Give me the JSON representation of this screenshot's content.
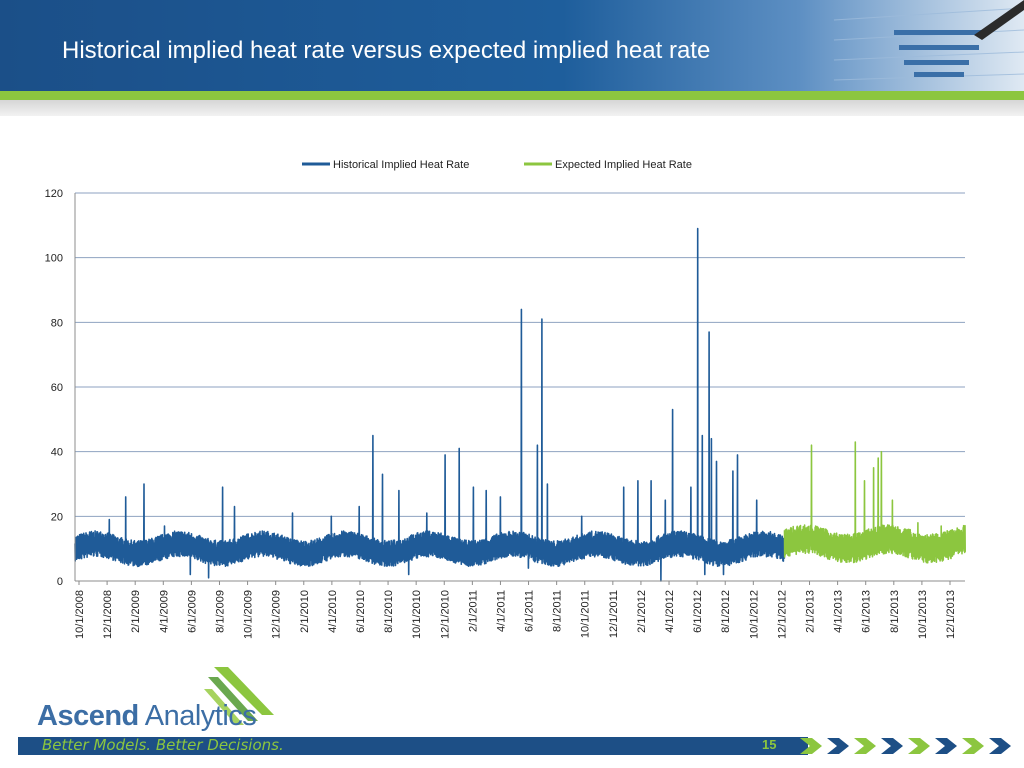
{
  "slide": {
    "title": "Historical implied heat rate versus expected implied heat rate",
    "page_number": "15"
  },
  "branding": {
    "logo_bold": "Ascend",
    "logo_light": " Analytics",
    "tagline": "Better Models. Better Decisions."
  },
  "colors": {
    "historical": "#1f5b98",
    "expected": "#8cc63f",
    "header": "#1e5e9c",
    "accent_green": "#8cc63f"
  },
  "chart_data": {
    "type": "line",
    "title": "",
    "xlabel": "",
    "ylabel": "",
    "ylim": [
      0,
      120
    ],
    "yticks": [
      0,
      20,
      40,
      60,
      80,
      100,
      120
    ],
    "grid": true,
    "legend_position": "top",
    "x_tick_labels": [
      "10/1/2008",
      "12/1/2008",
      "2/1/2009",
      "4/1/2009",
      "6/1/2009",
      "8/1/2009",
      "10/1/2009",
      "12/1/2009",
      "2/1/2010",
      "4/1/2010",
      "6/1/2010",
      "8/1/2010",
      "10/1/2010",
      "12/1/2010",
      "2/1/2011",
      "4/1/2011",
      "6/1/2011",
      "8/1/2011",
      "10/1/2011",
      "12/1/2011",
      "2/1/2012",
      "4/1/2012",
      "6/1/2012",
      "8/1/2012",
      "10/1/2012",
      "12/1/2012",
      "2/1/2013",
      "4/1/2013",
      "6/1/2013",
      "8/1/2013",
      "10/1/2013",
      "12/1/2013"
    ],
    "x_range": [
      "2008-10-01",
      "2014-01-31"
    ],
    "series": [
      {
        "name": "Historical Implied Heat Rate",
        "color": "#1f5b98",
        "range": [
          "2008-10-01",
          "2012-12-31"
        ],
        "typical_band": [
          6,
          14
        ],
        "notable_points": [
          {
            "date": "2008-12-15",
            "value": 19
          },
          {
            "date": "2009-01-20",
            "value": 26
          },
          {
            "date": "2009-03-01",
            "value": 30
          },
          {
            "date": "2009-04-15",
            "value": 17
          },
          {
            "date": "2009-06-10",
            "value": 2
          },
          {
            "date": "2009-07-20",
            "value": 1
          },
          {
            "date": "2009-08-20",
            "value": 29
          },
          {
            "date": "2009-09-15",
            "value": 23
          },
          {
            "date": "2010-01-20",
            "value": 21
          },
          {
            "date": "2010-04-15",
            "value": 20
          },
          {
            "date": "2010-06-15",
            "value": 23
          },
          {
            "date": "2010-07-15",
            "value": 45
          },
          {
            "date": "2010-08-05",
            "value": 33
          },
          {
            "date": "2010-09-10",
            "value": 28
          },
          {
            "date": "2010-10-01",
            "value": 2
          },
          {
            "date": "2010-11-10",
            "value": 21
          },
          {
            "date": "2010-12-20",
            "value": 39
          },
          {
            "date": "2011-01-20",
            "value": 41
          },
          {
            "date": "2011-02-20",
            "value": 29
          },
          {
            "date": "2011-03-20",
            "value": 28
          },
          {
            "date": "2011-04-20",
            "value": 26
          },
          {
            "date": "2011-06-05",
            "value": 84
          },
          {
            "date": "2011-06-20",
            "value": 4
          },
          {
            "date": "2011-07-10",
            "value": 42
          },
          {
            "date": "2011-07-20",
            "value": 81
          },
          {
            "date": "2011-08-01",
            "value": 30
          },
          {
            "date": "2011-10-15",
            "value": 20
          },
          {
            "date": "2012-01-15",
            "value": 29
          },
          {
            "date": "2012-02-15",
            "value": 31
          },
          {
            "date": "2012-03-15",
            "value": 31
          },
          {
            "date": "2012-04-05",
            "value": 0
          },
          {
            "date": "2012-04-15",
            "value": 25
          },
          {
            "date": "2012-05-01",
            "value": 53
          },
          {
            "date": "2012-06-10",
            "value": 29
          },
          {
            "date": "2012-06-25",
            "value": 109
          },
          {
            "date": "2012-07-05",
            "value": 45
          },
          {
            "date": "2012-07-10",
            "value": 2
          },
          {
            "date": "2012-07-20",
            "value": 77
          },
          {
            "date": "2012-07-25",
            "value": 44
          },
          {
            "date": "2012-08-05",
            "value": 37
          },
          {
            "date": "2012-08-20",
            "value": 2
          },
          {
            "date": "2012-09-10",
            "value": 34
          },
          {
            "date": "2012-09-20",
            "value": 39
          },
          {
            "date": "2012-11-01",
            "value": 25
          }
        ]
      },
      {
        "name": "Expected Implied Heat Rate",
        "color": "#8cc63f",
        "range": [
          "2013-01-01",
          "2014-01-31"
        ],
        "typical_band": [
          7,
          16
        ],
        "notable_points": [
          {
            "date": "2013-03-01",
            "value": 42
          },
          {
            "date": "2013-06-05",
            "value": 43
          },
          {
            "date": "2013-06-25",
            "value": 31
          },
          {
            "date": "2013-07-15",
            "value": 35
          },
          {
            "date": "2013-07-25",
            "value": 38
          },
          {
            "date": "2013-08-01",
            "value": 40
          },
          {
            "date": "2013-08-25",
            "value": 25
          },
          {
            "date": "2013-10-20",
            "value": 18
          },
          {
            "date": "2013-12-10",
            "value": 17
          }
        ]
      }
    ]
  }
}
